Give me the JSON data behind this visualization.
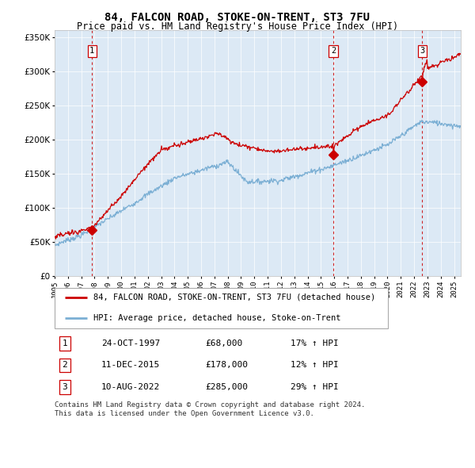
{
  "title": "84, FALCON ROAD, STOKE-ON-TRENT, ST3 7FU",
  "subtitle": "Price paid vs. HM Land Registry's House Price Index (HPI)",
  "legend_line1": "84, FALCON ROAD, STOKE-ON-TRENT, ST3 7FU (detached house)",
  "legend_line2": "HPI: Average price, detached house, Stoke-on-Trent",
  "footnote": "Contains HM Land Registry data © Crown copyright and database right 2024.\nThis data is licensed under the Open Government Licence v3.0.",
  "transactions": [
    {
      "label": "1",
      "date": "24-OCT-1997",
      "price": 68000,
      "hpi_pct": "17% ↑ HPI",
      "x_year": 1997.81
    },
    {
      "label": "2",
      "date": "11-DEC-2015",
      "price": 178000,
      "hpi_pct": "12% ↑ HPI",
      "x_year": 2015.94
    },
    {
      "label": "3",
      "date": "10-AUG-2022",
      "price": 285000,
      "hpi_pct": "29% ↑ HPI",
      "x_year": 2022.61
    }
  ],
  "hpi_color": "#7bafd4",
  "price_color": "#cc0000",
  "dashed_color": "#cc0000",
  "plot_background": "#dce9f5",
  "ylim": [
    0,
    360000
  ],
  "xlim_start": 1995.0,
  "xlim_end": 2025.5,
  "yticks": [
    0,
    50000,
    100000,
    150000,
    200000,
    250000,
    300000,
    350000
  ],
  "xticks": [
    1995,
    1996,
    1997,
    1998,
    1999,
    2000,
    2001,
    2002,
    2003,
    2004,
    2005,
    2006,
    2007,
    2008,
    2009,
    2010,
    2011,
    2012,
    2013,
    2014,
    2015,
    2016,
    2017,
    2018,
    2019,
    2020,
    2021,
    2022,
    2023,
    2024,
    2025
  ]
}
